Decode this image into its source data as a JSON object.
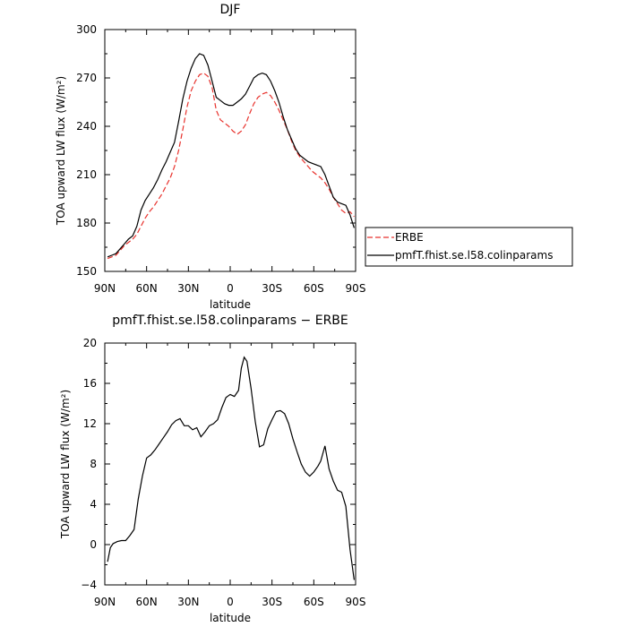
{
  "chart_data": [
    {
      "type": "line",
      "title": "DJF",
      "xlabel": "latitude",
      "ylabel": "TOA upward LW flux (W/m²)",
      "xlim": [
        -90,
        90
      ],
      "ylim": [
        150,
        300
      ],
      "xticks": [
        -90,
        -60,
        -30,
        0,
        30,
        60,
        90
      ],
      "xtick_labels": [
        "90N",
        "60N",
        "30N",
        "0",
        "30S",
        "60S",
        "90S"
      ],
      "yticks": [
        150,
        180,
        210,
        240,
        270,
        300
      ],
      "ytick_labels": [
        "150",
        "180",
        "210",
        "240",
        "270",
        "300"
      ],
      "legend_position": "right-bottom",
      "series": [
        {
          "name": "ERBE",
          "color": "#e8322d",
          "dash": "dashed",
          "x": [
            -88,
            -85,
            -82,
            -79,
            -76,
            -73,
            -70,
            -67,
            -64,
            -61,
            -58,
            -55,
            -52,
            -49,
            -46,
            -43,
            -40,
            -37,
            -34,
            -31,
            -28,
            -25,
            -22,
            -19,
            -16,
            -13,
            -10,
            -7,
            -4,
            -1,
            2,
            5,
            8,
            11,
            14,
            17,
            20,
            23,
            26,
            29,
            32,
            35,
            38,
            41,
            44,
            47,
            50,
            53,
            56,
            59,
            62,
            65,
            68,
            71,
            74,
            77,
            80,
            83,
            86,
            89
          ],
          "values": [
            158,
            159,
            160,
            163,
            166,
            168,
            170,
            173,
            178,
            183,
            187,
            190,
            194,
            198,
            203,
            208,
            215,
            225,
            238,
            252,
            262,
            268,
            272,
            273,
            271,
            264,
            250,
            244,
            242,
            240,
            237,
            235,
            237,
            241,
            248,
            254,
            258,
            260,
            261,
            259,
            255,
            250,
            244,
            238,
            231,
            225,
            221,
            218,
            215,
            212,
            210,
            208,
            205,
            201,
            196,
            192,
            188,
            186,
            187,
            184
          ]
        },
        {
          "name": "pmfT.fhist.se.l58.colinparams",
          "color": "#000000",
          "dash": "solid",
          "x": [
            -88,
            -85,
            -82,
            -79,
            -76,
            -73,
            -70,
            -67,
            -64,
            -61,
            -58,
            -55,
            -52,
            -49,
            -46,
            -43,
            -40,
            -37,
            -34,
            -31,
            -28,
            -25,
            -22,
            -19,
            -16,
            -13,
            -10,
            -7,
            -4,
            -1,
            2,
            5,
            8,
            11,
            14,
            17,
            20,
            23,
            26,
            29,
            32,
            35,
            38,
            41,
            44,
            47,
            50,
            53,
            56,
            59,
            62,
            65,
            68,
            71,
            74,
            77,
            80,
            83,
            86,
            89
          ],
          "values": [
            159,
            160,
            161,
            164,
            167,
            170,
            172,
            178,
            188,
            194,
            198,
            202,
            207,
            213,
            218,
            224,
            230,
            243,
            257,
            268,
            276,
            282,
            285,
            284,
            278,
            268,
            258,
            256,
            254,
            253,
            253,
            255,
            257,
            260,
            265,
            270,
            272,
            273,
            272,
            268,
            262,
            255,
            246,
            238,
            232,
            226,
            222,
            220,
            218,
            217,
            216,
            215,
            210,
            203,
            196,
            193,
            192,
            191,
            185,
            177
          ]
        }
      ]
    },
    {
      "type": "line",
      "title": "pmfT.fhist.se.l58.colinparams − ERBE",
      "xlabel": "latitude",
      "ylabel": "TOA upward LW flux (W/m²)",
      "xlim": [
        -90,
        90
      ],
      "ylim": [
        -4,
        20
      ],
      "xticks": [
        -90,
        -60,
        -30,
        0,
        30,
        60,
        90
      ],
      "xtick_labels": [
        "90N",
        "60N",
        "30N",
        "0",
        "30S",
        "60S",
        "90S"
      ],
      "yticks": [
        -4,
        0,
        4,
        8,
        12,
        16,
        20
      ],
      "ytick_labels": [
        "−4",
        "0",
        "4",
        "8",
        "12",
        "16",
        "20"
      ],
      "series": [
        {
          "color": "#000000",
          "dash": "solid",
          "x": [
            -88,
            -86,
            -84,
            -81,
            -78,
            -75,
            -72,
            -69,
            -66,
            -63,
            -60,
            -57,
            -54,
            -51,
            -48,
            -45,
            -42,
            -39,
            -36,
            -33,
            -30,
            -27,
            -24,
            -21,
            -18,
            -15,
            -12,
            -9,
            -6,
            -3,
            0,
            3,
            6,
            8,
            10,
            12,
            15,
            18,
            21,
            24,
            27,
            30,
            33,
            36,
            39,
            42,
            45,
            48,
            51,
            54,
            57,
            60,
            63,
            65,
            68,
            71,
            74,
            77,
            80,
            83,
            86,
            89
          ],
          "values": [
            -1.7,
            -0.3,
            0.1,
            0.3,
            0.4,
            0.4,
            0.9,
            1.5,
            4.5,
            6.8,
            8.6,
            8.9,
            9.4,
            10.0,
            10.6,
            11.2,
            11.9,
            12.3,
            12.5,
            11.8,
            11.8,
            11.4,
            11.6,
            10.7,
            11.2,
            11.8,
            12.0,
            12.4,
            13.6,
            14.6,
            14.9,
            14.7,
            15.3,
            17.5,
            18.6,
            18.2,
            15.5,
            12.2,
            9.7,
            9.9,
            11.5,
            12.4,
            13.2,
            13.3,
            13.0,
            12.0,
            10.5,
            9.2,
            8.0,
            7.2,
            6.8,
            7.2,
            7.8,
            8.3,
            9.8,
            7.5,
            6.3,
            5.4,
            5.2,
            3.8,
            -0.5,
            -3.5
          ]
        }
      ]
    }
  ]
}
